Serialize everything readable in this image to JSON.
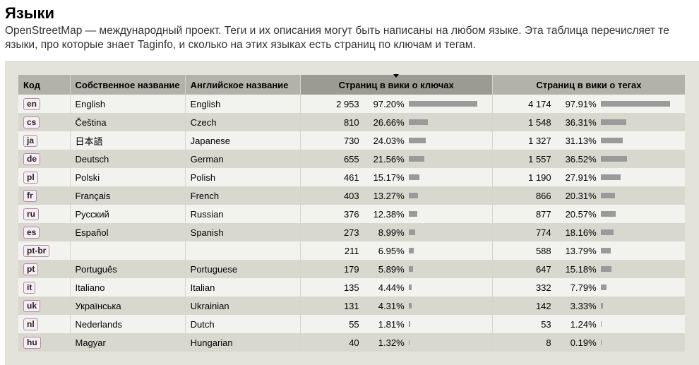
{
  "page": {
    "title": "Языки",
    "intro": "OpenStreetMap — международный проект. Теги и их описания могут быть написаны на любом языке. Эта таблица перечисляет те языки, про которые знает Taginfo, и сколько на этих языках есть страниц по ключам и тегам."
  },
  "table": {
    "headers": {
      "code": "Код",
      "native": "Собственное название",
      "english": "Английское название",
      "key_pages": "Страниц в вики о ключах",
      "tag_pages": "Страниц в вики о тегах"
    },
    "sorted_column": "key_pages",
    "rows": [
      {
        "code": "en",
        "native": "English",
        "english": "English",
        "keys_count": "2 953",
        "keys_pct": "97.20%",
        "keys_frac": 0.972,
        "tags_count": "4 174",
        "tags_pct": "97.91%",
        "tags_frac": 0.9791
      },
      {
        "code": "cs",
        "native": "Čeština",
        "english": "Czech",
        "keys_count": "810",
        "keys_pct": "26.66%",
        "keys_frac": 0.2666,
        "tags_count": "1 548",
        "tags_pct": "36.31%",
        "tags_frac": 0.3631
      },
      {
        "code": "ja",
        "native": "日本語",
        "english": "Japanese",
        "keys_count": "730",
        "keys_pct": "24.03%",
        "keys_frac": 0.2403,
        "tags_count": "1 327",
        "tags_pct": "31.13%",
        "tags_frac": 0.3113
      },
      {
        "code": "de",
        "native": "Deutsch",
        "english": "German",
        "keys_count": "655",
        "keys_pct": "21.56%",
        "keys_frac": 0.2156,
        "tags_count": "1 557",
        "tags_pct": "36.52%",
        "tags_frac": 0.3652
      },
      {
        "code": "pl",
        "native": "Polski",
        "english": "Polish",
        "keys_count": "461",
        "keys_pct": "15.17%",
        "keys_frac": 0.1517,
        "tags_count": "1 190",
        "tags_pct": "27.91%",
        "tags_frac": 0.2791
      },
      {
        "code": "fr",
        "native": "Français",
        "english": "French",
        "keys_count": "403",
        "keys_pct": "13.27%",
        "keys_frac": 0.1327,
        "tags_count": "866",
        "tags_pct": "20.31%",
        "tags_frac": 0.2031
      },
      {
        "code": "ru",
        "native": "Русский",
        "english": "Russian",
        "keys_count": "376",
        "keys_pct": "12.38%",
        "keys_frac": 0.1238,
        "tags_count": "877",
        "tags_pct": "20.57%",
        "tags_frac": 0.2057
      },
      {
        "code": "es",
        "native": "Español",
        "english": "Spanish",
        "keys_count": "273",
        "keys_pct": "8.99%",
        "keys_frac": 0.0899,
        "tags_count": "774",
        "tags_pct": "18.16%",
        "tags_frac": 0.1816
      },
      {
        "code": "pt-br",
        "native": "",
        "english": "",
        "keys_count": "211",
        "keys_pct": "6.95%",
        "keys_frac": 0.0695,
        "tags_count": "588",
        "tags_pct": "13.79%",
        "tags_frac": 0.1379
      },
      {
        "code": "pt",
        "native": "Português",
        "english": "Portuguese",
        "keys_count": "179",
        "keys_pct": "5.89%",
        "keys_frac": 0.0589,
        "tags_count": "647",
        "tags_pct": "15.18%",
        "tags_frac": 0.1518
      },
      {
        "code": "it",
        "native": "Italiano",
        "english": "Italian",
        "keys_count": "135",
        "keys_pct": "4.44%",
        "keys_frac": 0.0444,
        "tags_count": "332",
        "tags_pct": "7.79%",
        "tags_frac": 0.0779
      },
      {
        "code": "uk",
        "native": "Українська",
        "english": "Ukrainian",
        "keys_count": "131",
        "keys_pct": "4.31%",
        "keys_frac": 0.0431,
        "tags_count": "142",
        "tags_pct": "3.33%",
        "tags_frac": 0.0333
      },
      {
        "code": "nl",
        "native": "Nederlands",
        "english": "Dutch",
        "keys_count": "55",
        "keys_pct": "1.81%",
        "keys_frac": 0.0181,
        "tags_count": "53",
        "tags_pct": "1.24%",
        "tags_frac": 0.0124
      },
      {
        "code": "hu",
        "native": "Magyar",
        "english": "Hungarian",
        "keys_count": "40",
        "keys_pct": "1.32%",
        "keys_frac": 0.0132,
        "tags_count": "8",
        "tags_pct": "0.19%",
        "tags_frac": 0.0019
      }
    ]
  },
  "colors": {
    "header_bg": "#b3b2a9",
    "sorted_header_bg": "#9c9b92",
    "row_light": "#f2f2ee",
    "row_dark": "#d9d8cf",
    "bar": "#9a9a9a",
    "code_border": "#b08ca6"
  }
}
